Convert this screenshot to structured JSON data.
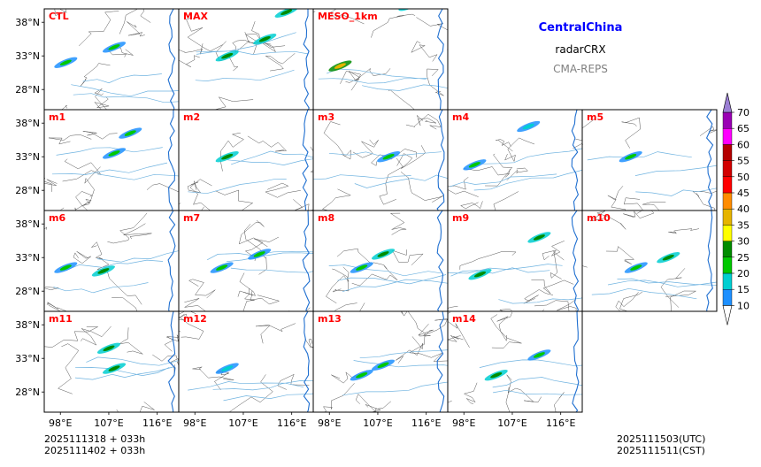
{
  "title": {
    "region": "CentralChina",
    "product": "radarCRX",
    "model": "CMA-REPS",
    "region_color": "#0000ff",
    "model_color": "#808080"
  },
  "chart_data": {
    "type": "heatmap",
    "description_units": "composite radar reflectivity (dBZ)",
    "panels": [
      {
        "name": "CTL",
        "echoes": [
          {
            "lon": 99,
            "lat": 32.0,
            "max": 20
          },
          {
            "lon": 108,
            "lat": 34.3,
            "max": 20
          }
        ]
      },
      {
        "name": "MAX",
        "echoes": [
          {
            "lon": 104,
            "lat": 33.0,
            "max": 25
          },
          {
            "lon": 111,
            "lat": 35.5,
            "max": 25
          },
          {
            "lon": 115,
            "lat": 39.5,
            "max": 25
          }
        ]
      },
      {
        "name": "MESO_1km",
        "echoes": [
          {
            "lon": 100,
            "lat": 31.5,
            "max": 35
          },
          {
            "lon": 113,
            "lat": 40.5,
            "max": 25
          }
        ]
      },
      {
        "name": "m1",
        "echoes": [
          {
            "lon": 108,
            "lat": 33.5,
            "max": 20
          },
          {
            "lon": 111,
            "lat": 36.5,
            "max": 20
          }
        ]
      },
      {
        "name": "m2",
        "echoes": [
          {
            "lon": 104,
            "lat": 33.0,
            "max": 25
          }
        ]
      },
      {
        "name": "m3",
        "echoes": [
          {
            "lon": 109,
            "lat": 33.0,
            "max": 20
          }
        ]
      },
      {
        "name": "m4",
        "echoes": [
          {
            "lon": 100,
            "lat": 31.8,
            "max": 20
          },
          {
            "lon": 110,
            "lat": 37.5,
            "max": 15
          }
        ]
      },
      {
        "name": "m5",
        "echoes": [
          {
            "lon": 104,
            "lat": 33.0,
            "max": 20
          }
        ]
      },
      {
        "name": "m6",
        "echoes": [
          {
            "lon": 99,
            "lat": 31.5,
            "max": 20
          },
          {
            "lon": 106,
            "lat": 31.0,
            "max": 25
          }
        ]
      },
      {
        "name": "m7",
        "echoes": [
          {
            "lon": 103,
            "lat": 31.5,
            "max": 20
          },
          {
            "lon": 110,
            "lat": 33.5,
            "max": 20
          }
        ]
      },
      {
        "name": "m8",
        "echoes": [
          {
            "lon": 104,
            "lat": 31.5,
            "max": 20
          },
          {
            "lon": 108,
            "lat": 33.5,
            "max": 25
          }
        ]
      },
      {
        "name": "m9",
        "echoes": [
          {
            "lon": 101,
            "lat": 30.5,
            "max": 25
          },
          {
            "lon": 112,
            "lat": 36.0,
            "max": 25
          }
        ]
      },
      {
        "name": "m10",
        "echoes": [
          {
            "lon": 105,
            "lat": 31.5,
            "max": 20
          },
          {
            "lon": 111,
            "lat": 33.0,
            "max": 25
          }
        ]
      },
      {
        "name": "m11",
        "echoes": [
          {
            "lon": 107,
            "lat": 34.5,
            "max": 25
          },
          {
            "lon": 108,
            "lat": 31.5,
            "max": 25
          }
        ]
      },
      {
        "name": "m12",
        "echoes": [
          {
            "lon": 104,
            "lat": 31.5,
            "max": 15
          }
        ]
      },
      {
        "name": "m13",
        "echoes": [
          {
            "lon": 104,
            "lat": 30.5,
            "max": 20
          },
          {
            "lon": 108,
            "lat": 32.0,
            "max": 20
          }
        ]
      },
      {
        "name": "m14",
        "echoes": [
          {
            "lon": 104,
            "lat": 30.5,
            "max": 25
          },
          {
            "lon": 112,
            "lat": 33.5,
            "max": 20
          }
        ]
      }
    ],
    "x_ticks": [
      "98°E",
      "107°E",
      "116°E"
    ],
    "x_tick_values": [
      98,
      107,
      116
    ],
    "y_ticks": [
      "38°N",
      "33°N",
      "28°N"
    ],
    "y_tick_values": [
      38,
      33,
      28
    ],
    "xlim": [
      95,
      120
    ],
    "ylim": [
      25,
      40
    ],
    "colorbar": {
      "levels": [
        10,
        15,
        20,
        25,
        30,
        35,
        40,
        45,
        50,
        55,
        60,
        65,
        70
      ],
      "labels": [
        "70",
        "65",
        "60",
        "55",
        "50",
        "45",
        "40",
        "35",
        "30",
        "25",
        "20",
        "15",
        "10"
      ],
      "colors": [
        "#1e90ff",
        "#00ced1",
        "#00c800",
        "#008c00",
        "#ffff00",
        "#e6b400",
        "#ff8c00",
        "#ff0000",
        "#d20000",
        "#b40000",
        "#ff00ff",
        "#9a00b4",
        "#9b7fd4"
      ],
      "extend": "both",
      "under_color": "#ffffff",
      "over_color": "#9b7fd4"
    }
  },
  "footer": {
    "init_utc": "2025111318  +  033h",
    "init_cst": "2025111402  +  033h",
    "valid_utc": "2025111503(UTC)",
    "valid_cst": "2025111511(CST)"
  }
}
